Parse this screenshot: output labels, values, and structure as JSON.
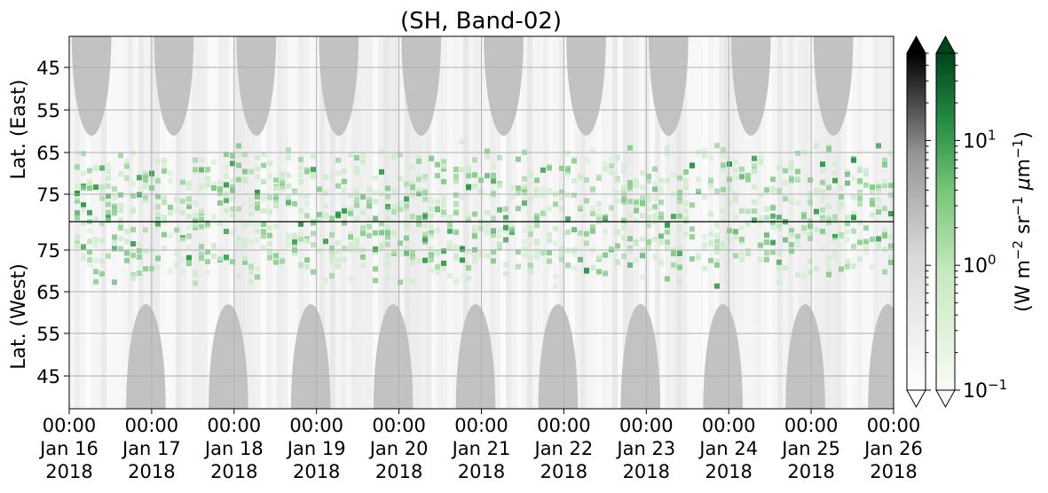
{
  "chart_data": {
    "type": "heatmap",
    "title": "(SH, Band-02)",
    "ylabel_upper": "Lat. (East)",
    "ylabel_lower": "Lat. (West)",
    "y_ticks_east": [
      "45",
      "55",
      "65",
      "75"
    ],
    "y_ticks_west": [
      "75",
      "65",
      "55",
      "45"
    ],
    "x_ticks": [
      [
        "00:00",
        "Jan 16",
        "2018"
      ],
      [
        "00:00",
        "Jan 17",
        "2018"
      ],
      [
        "00:00",
        "Jan 18",
        "2018"
      ],
      [
        "00:00",
        "Jan 19",
        "2018"
      ],
      [
        "00:00",
        "Jan 20",
        "2018"
      ],
      [
        "00:00",
        "Jan 21",
        "2018"
      ],
      [
        "00:00",
        "Jan 22",
        "2018"
      ],
      [
        "00:00",
        "Jan 23",
        "2018"
      ],
      [
        "00:00",
        "Jan 24",
        "2018"
      ],
      [
        "00:00",
        "Jan 25",
        "2018"
      ],
      [
        "00:00",
        "Jan 26",
        "2018"
      ]
    ],
    "x_range": [
      "2018-01-16 00:00",
      "2018-01-26 00:00"
    ],
    "grid": true,
    "colorbars": [
      {
        "cmap": "Greys",
        "tick_labels": []
      },
      {
        "cmap": "Greens",
        "tick_labels": [
          "10^1",
          "10^0",
          "10^-1"
        ]
      }
    ],
    "colorbar_scale": "log",
    "colorbar_range": [
      0.1,
      50
    ],
    "colorbar_label": "(W m^-2 sr^-1 μm^-1)",
    "colors": {
      "gap": "#c2c2c2",
      "aurora_light": "#cdeccb",
      "aurora_mid": "#7fcb85",
      "aurora_dark": "#23953f",
      "greens_top": "#00441b",
      "greys_top": "#000000"
    },
    "upper_gaps_day": [
      0.27,
      1.27,
      2.27,
      3.27,
      4.27,
      5.27,
      6.27,
      7.27,
      8.27,
      9.27
    ],
    "lower_gaps_day": [
      0.93,
      1.93,
      2.93,
      3.93,
      4.93,
      5.93,
      6.93,
      7.93,
      8.93,
      9.93
    ]
  }
}
